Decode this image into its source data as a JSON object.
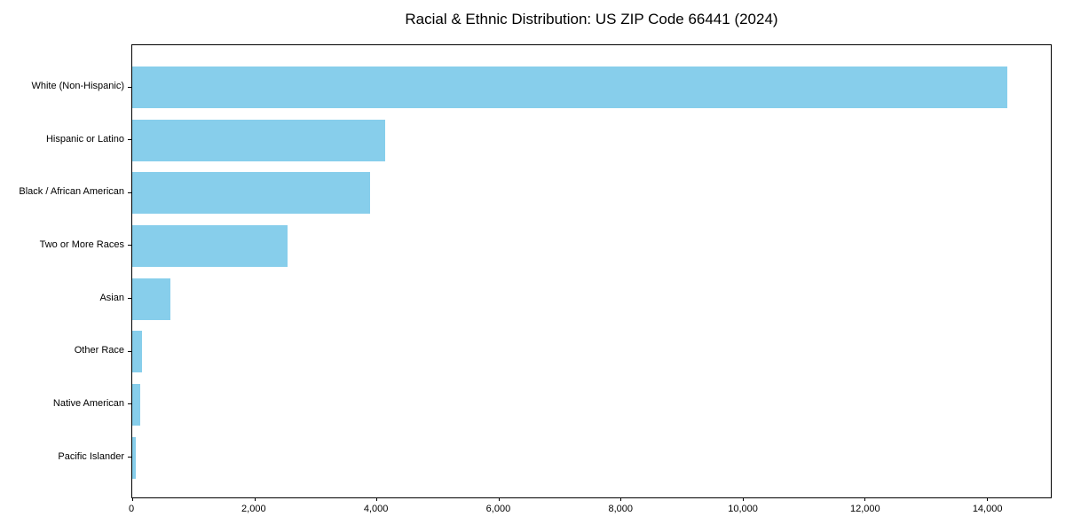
{
  "figure": {
    "background": "#ffffff"
  },
  "chart_data": {
    "type": "bar",
    "orientation": "horizontal",
    "title": "Racial & Ethnic Distribution: US ZIP Code 66441 (2024)",
    "categories": [
      "White (Non-Hispanic)",
      "Hispanic or Latino",
      "Black / African American",
      "Two or More Races",
      "Asian",
      "Other Race",
      "Native American",
      "Pacific Islander"
    ],
    "values": [
      14340,
      4150,
      3890,
      2550,
      620,
      165,
      135,
      65
    ],
    "bar_color": "#87CEEB",
    "axis_color": "#000000",
    "text_color": "#000000",
    "xlim": [
      0,
      15050
    ],
    "x_ticks": [
      0,
      2000,
      4000,
      6000,
      8000,
      10000,
      12000,
      14000
    ],
    "x_tick_labels": [
      "0",
      "2,000",
      "4,000",
      "6,000",
      "8,000",
      "10,000",
      "12,000",
      "14,000"
    ],
    "xlabel": "",
    "ylabel": "",
    "grid": false,
    "legend": "none"
  }
}
